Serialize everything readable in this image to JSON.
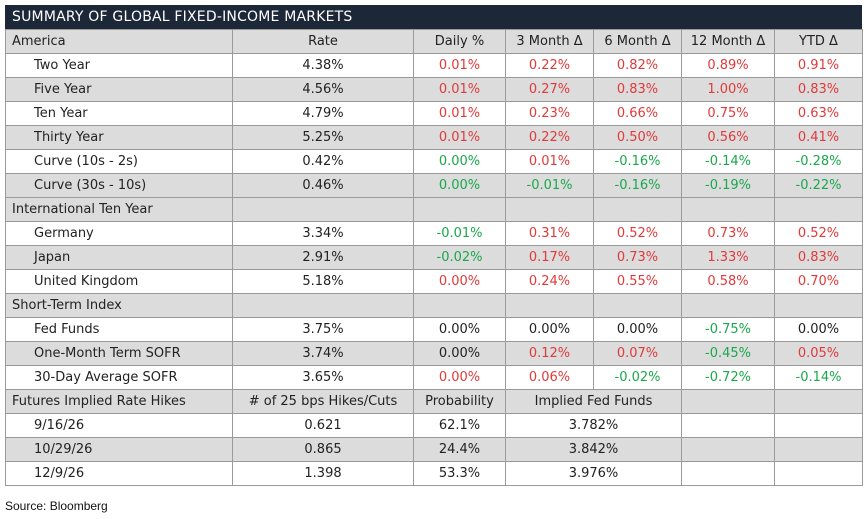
{
  "title": "SUMMARY OF GLOBAL FIXED-INCOME MARKETS",
  "header": [
    "America",
    "Rate",
    "Daily %",
    "3 Month Δ",
    "6 Month Δ",
    "12 Month Δ",
    "YTD Δ"
  ],
  "america": [
    {
      "label": "Two Year",
      "rate": "4.38%",
      "daily": "0.01%",
      "m3": "0.22%",
      "m6": "0.82%",
      "m12": "0.89%",
      "ytd": "0.91%"
    },
    {
      "label": "Five Year",
      "rate": "4.56%",
      "daily": "0.01%",
      "m3": "0.27%",
      "m6": "0.83%",
      "m12": "1.00%",
      "ytd": "0.83%"
    },
    {
      "label": "Ten Year",
      "rate": "4.79%",
      "daily": "0.01%",
      "m3": "0.23%",
      "m6": "0.66%",
      "m12": "0.75%",
      "ytd": "0.63%"
    },
    {
      "label": "Thirty Year",
      "rate": "5.25%",
      "daily": "0.01%",
      "m3": "0.22%",
      "m6": "0.50%",
      "m12": "0.56%",
      "ytd": "0.41%"
    },
    {
      "label": "Curve (10s - 2s)",
      "rate": "0.42%",
      "daily": "0.00%",
      "m3": "0.01%",
      "m6": "-0.16%",
      "m12": "-0.14%",
      "ytd": "-0.28%"
    },
    {
      "label": "Curve (30s - 10s)",
      "rate": "0.46%",
      "daily": "0.00%",
      "m3": "-0.01%",
      "m6": "-0.16%",
      "m12": "-0.19%",
      "ytd": "-0.22%"
    }
  ],
  "international_header": "International Ten Year",
  "international": [
    {
      "label": "Germany",
      "rate": "3.34%",
      "daily": "-0.01%",
      "m3": "0.31%",
      "m6": "0.52%",
      "m12": "0.73%",
      "ytd": "0.52%"
    },
    {
      "label": "Japan",
      "rate": "2.91%",
      "daily": "-0.02%",
      "m3": "0.17%",
      "m6": "0.73%",
      "m12": "1.33%",
      "ytd": "0.83%"
    },
    {
      "label": "United Kingdom",
      "rate": "5.18%",
      "daily": "0.00%",
      "m3": "0.24%",
      "m6": "0.55%",
      "m12": "0.58%",
      "ytd": "0.70%"
    }
  ],
  "short_term_header": "Short-Term Index",
  "short_term": [
    {
      "label": "Fed Funds",
      "rate": "3.75%",
      "daily": "0.00%",
      "m3": "0.00%",
      "m6": "0.00%",
      "m12": "-0.75%",
      "ytd": "0.00%"
    },
    {
      "label": "One-Month Term SOFR",
      "rate": "3.74%",
      "daily": "0.00%",
      "m3": "0.12%",
      "m6": "0.07%",
      "m12": "-0.45%",
      "ytd": "0.05%"
    },
    {
      "label": "30-Day Average SOFR",
      "rate": "3.65%",
      "daily": "0.00%",
      "m3": "0.06%",
      "m6": "-0.02%",
      "m12": "-0.72%",
      "ytd": "-0.14%"
    }
  ],
  "futures_header": [
    "Futures Implied Rate Hikes",
    "# of 25 bps Hikes/Cuts",
    "Probability",
    "Implied Fed Funds"
  ],
  "futures": [
    {
      "date": "9/16/26",
      "hikes": "0.621",
      "prob": "62.1%",
      "implied": "3.782%"
    },
    {
      "date": "10/29/26",
      "hikes": "0.865",
      "prob": "24.4%",
      "implied": "3.842%"
    },
    {
      "date": "12/9/26",
      "hikes": "1.398",
      "prob": "53.3%",
      "implied": "3.976%"
    }
  ],
  "source": "Source: Bloomberg",
  "colors": {
    "title_bg": "#1c2838",
    "shade": "#dcdcdc",
    "positive": "#e03a3a",
    "negative": "#19a84a"
  }
}
